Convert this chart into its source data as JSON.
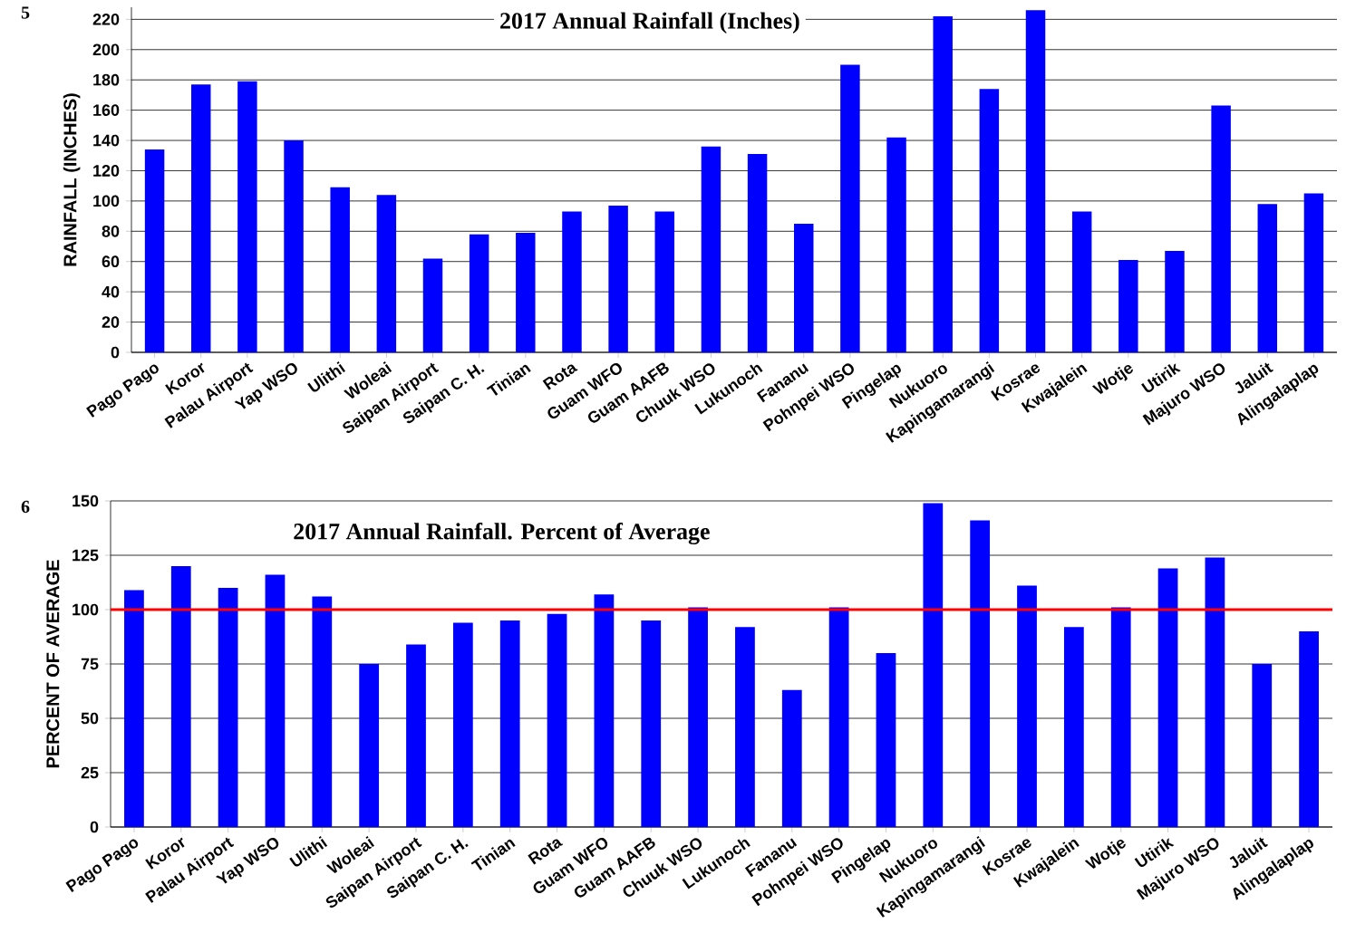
{
  "chart_data": [
    {
      "type": "bar",
      "title": "2017 Annual Rainfall (Inches)",
      "ylabel": "RAINFALL (INCHES)",
      "annotations": [
        "5"
      ],
      "categories": [
        "Pago Pago",
        "Koror",
        "Palau Airport",
        "Yap WSO",
        "Ulithi",
        "Woleai",
        "Saipan Airport",
        "Saipan C. H.",
        "Tinian",
        "Rota",
        "Guam WFO",
        "Guam AAFB",
        "Chuuk WSO",
        "Lukunoch",
        "Fananu",
        "Pohnpei WSO",
        "Pingelap",
        "Nukuoro",
        "Kapingamarangi",
        "Kosrae",
        "Kwajalein",
        "Wotje",
        "Utirik",
        "Majuro WSO",
        "Jaluit",
        "Alingalaplap"
      ],
      "values": [
        134,
        177,
        179,
        140,
        109,
        104,
        62,
        78,
        79,
        93,
        97,
        93,
        136,
        131,
        85,
        190,
        142,
        222,
        174,
        226,
        93,
        61,
        67,
        163,
        98,
        105
      ],
      "color": "#0000ff",
      "ylim": [
        0,
        228
      ],
      "yticks": [
        0,
        20,
        40,
        60,
        80,
        100,
        120,
        140,
        160,
        180,
        200,
        220
      ],
      "grid": "y"
    },
    {
      "type": "bar",
      "title": "2017 Annual Rainfall.  Percent of Average",
      "ylabel": "PERCENT OF AVERAGE",
      "annotations": [
        "6"
      ],
      "categories": [
        "Pago Pago",
        "Koror",
        "Palau Airport",
        "Yap WSO",
        "Ulithi",
        "Woleai",
        "Saipan Airport",
        "Saipan C. H.",
        "Tinian",
        "Rota",
        "Guam WFO",
        "Guam AAFB",
        "Chuuk WSO",
        "Lukunoch",
        "Fananu",
        "Pohnpei WSO",
        "Pingelap",
        "Nukuoro",
        "Kapingamarangi",
        "Kosrae",
        "Kwajalein",
        "Wotje",
        "Utirik",
        "Majuro WSO",
        "Jaluit",
        "Alingalaplap"
      ],
      "values": [
        109,
        120,
        110,
        116,
        106,
        75,
        84,
        94,
        95,
        98,
        107,
        95,
        101,
        92,
        63,
        101,
        80,
        149,
        141,
        111,
        92,
        101,
        119,
        124,
        75,
        90
      ],
      "color": "#0000ff",
      "ylim": [
        0,
        150
      ],
      "yticks": [
        0,
        25,
        50,
        75,
        100,
        125,
        150
      ],
      "grid": "y",
      "ref_lines": [
        {
          "axis": "y",
          "value": 100,
          "color": "#ff0000"
        }
      ]
    }
  ]
}
